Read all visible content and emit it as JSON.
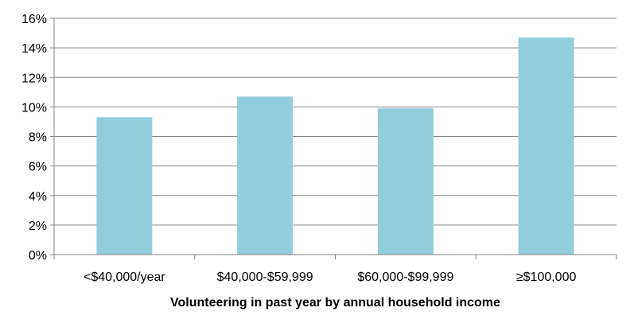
{
  "chart_data": {
    "type": "bar",
    "categories": [
      "<$40,000/year",
      "$40,000-$59,999",
      "$60,000-$99,999",
      "≥$100,000"
    ],
    "values": [
      9.3,
      10.7,
      9.9,
      14.7
    ],
    "title": "",
    "xlabel": "Volunteering in past year by annual household income",
    "ylabel": "",
    "ylim": [
      0,
      16
    ],
    "yticks": [
      0,
      2,
      4,
      6,
      8,
      10,
      12,
      14,
      16
    ],
    "ytick_labels": [
      "0%",
      "2%",
      "4%",
      "6%",
      "8%",
      "10%",
      "12%",
      "14%",
      "16%"
    ],
    "grid": true,
    "legend": "none",
    "colors": {
      "bar": "#92CDDC",
      "grid": "#868686",
      "axis": "#868686",
      "text": "#000000"
    }
  }
}
